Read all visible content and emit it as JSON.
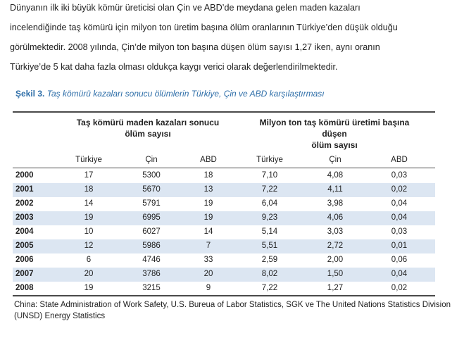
{
  "paragraph": {
    "lines": [
      "Dünyanın ilk iki büyük kömür üreticisi olan Çin ve ABD’de meydana gelen maden kazaları",
      "incelendiğinde taş kömürü için milyon ton üretim başına ölüm oranlarının Türkiye’den düşük olduğu",
      "görülmektedir. 2008 yılında, Çin’de milyon ton başına düşen ölüm sayısı 1,27 iken, aynı oranın",
      "Türkiye’de 5 kat daha fazla olması oldukça kaygı verici olarak değerlendirilmektedir."
    ]
  },
  "caption": {
    "label": "Şekil 3.",
    "text": "Taş kömürü kazaları sonucu ölümlerin Türkiye, Çin ve ABD karşılaştırması"
  },
  "table": {
    "groups": [
      {
        "lines": [
          "Taş kömürü maden kazaları sonucu",
          "ölüm sayısı"
        ]
      },
      {
        "lines": [
          "Milyon ton taş kömürü üretimi başına",
          "düşen",
          "ölüm sayısı"
        ]
      }
    ],
    "columns": [
      "Türkiye",
      "Çin",
      "ABD",
      "Türkiye",
      "Çin",
      "ABD"
    ],
    "rows": [
      [
        "2000",
        "17",
        "5300",
        "18",
        "7,10",
        "4,08",
        "0,03"
      ],
      [
        "2001",
        "18",
        "5670",
        "13",
        "7,22",
        "4,11",
        "0,02"
      ],
      [
        "2002",
        "14",
        "5791",
        "19",
        "6,04",
        "3,98",
        "0,04"
      ],
      [
        "2003",
        "19",
        "6995",
        "19",
        "9,23",
        "4,06",
        "0,04"
      ],
      [
        "2004",
        "10",
        "6027",
        "14",
        "5,14",
        "3,03",
        "0,03"
      ],
      [
        "2005",
        "12",
        "5986",
        "7",
        "5,51",
        "2,72",
        "0,01"
      ],
      [
        "2006",
        "6",
        "4746",
        "33",
        "2,59",
        "2,00",
        "0,06"
      ],
      [
        "2007",
        "20",
        "3786",
        "20",
        "8,02",
        "1,50",
        "0,04"
      ],
      [
        "2008",
        "19",
        "3215",
        "9",
        "7,22",
        "1,27",
        "0,02"
      ]
    ]
  },
  "source": "China: State Administration of Work Safety, U.S. Bureua of Labor Statistics, SGK ve The United Nations Statistics Division (UNSD) Energy Statistics"
}
